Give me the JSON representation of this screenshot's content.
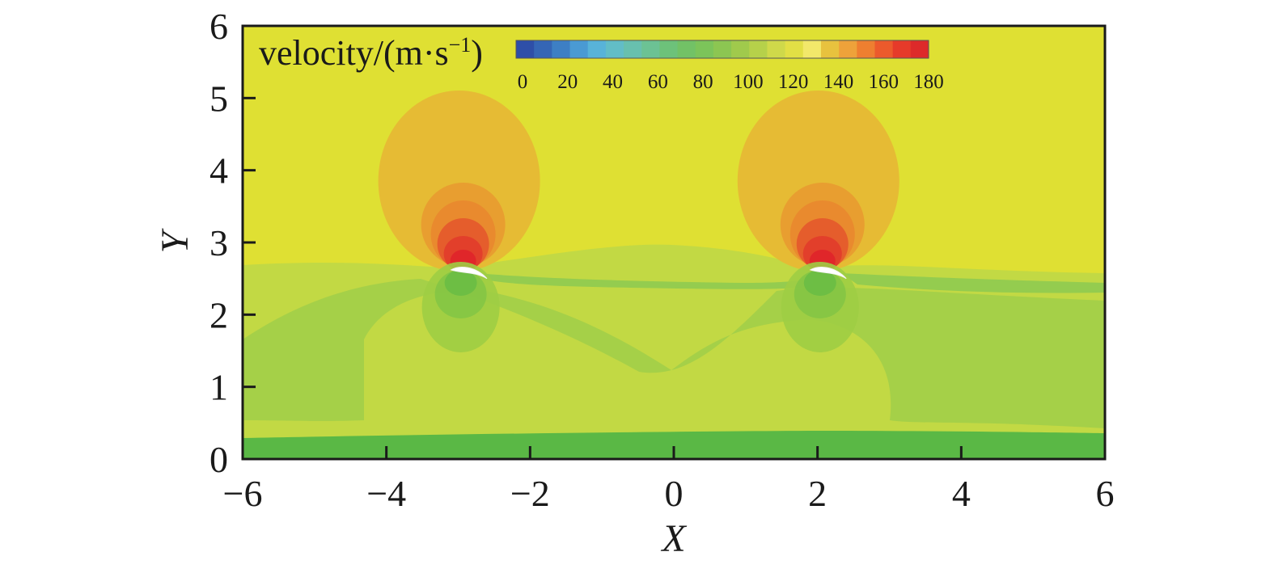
{
  "chart_data": {
    "type": "heatmap",
    "title": "",
    "xlabel": "X",
    "ylabel": "Y",
    "xlim": [
      -6,
      6
    ],
    "ylim": [
      0,
      6
    ],
    "x_ticks": [
      "−6",
      "−4",
      "−2",
      "0",
      "2",
      "4",
      "6"
    ],
    "y_ticks": [
      "0",
      "1",
      "2",
      "3",
      "4",
      "5",
      "6"
    ],
    "grid": false,
    "colorbar": {
      "title_base": "velocity/(m·s",
      "title_exp": "−1",
      "title_close": ")",
      "min": 0,
      "max": 180,
      "tick_labels": [
        "0",
        "20",
        "40",
        "60",
        "80",
        "100",
        "120",
        "140",
        "160",
        "180"
      ],
      "colors": [
        "#2e4fa8",
        "#3566b5",
        "#3d7fc4",
        "#4a9ad3",
        "#58b3d8",
        "#62bdc6",
        "#68c0ae",
        "#6cc294",
        "#6dc27a",
        "#72c266",
        "#7cc45a",
        "#8cc652",
        "#a0ca4c",
        "#b6d14a",
        "#cfd94a",
        "#e2df45",
        "#f2e86a",
        "#e8c23e",
        "#eea23a",
        "#ee7f30",
        "#ec5a2c",
        "#e63a2a",
        "#dd2a2a"
      ]
    },
    "airfoils": [
      {
        "name": "airfoil-1",
        "leading_edge": [
          -3.1,
          2.62
        ],
        "trailing_edge": [
          -2.6,
          2.5
        ]
      },
      {
        "name": "airfoil-2",
        "leading_edge": [
          1.9,
          2.62
        ],
        "trailing_edge": [
          2.4,
          2.5
        ]
      }
    ],
    "field_colors": {
      "background": "#dfe033",
      "lower_region": "#c2d944",
      "wake": "#94cc4f",
      "wall": "#5ab845",
      "orange_low": "#e6bb34",
      "orange_high": "#e98a2e",
      "red_peak": "#e0262a",
      "green_low": "#8ec84c"
    }
  }
}
